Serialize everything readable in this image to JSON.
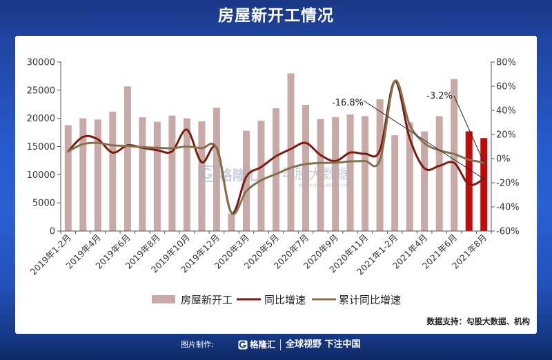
{
  "title": "房屋新开工情况",
  "chart_data": {
    "type": "bar",
    "categories": [
      "2019年1-2月",
      "",
      "2019年4月",
      "",
      "2019年6月",
      "",
      "2019年8月",
      "",
      "2019年10月",
      "",
      "2019年12月",
      "",
      "2020年3月",
      "",
      "2020年5月",
      "",
      "2020年7月",
      "",
      "2020年9月",
      "",
      "2020年11月",
      "",
      "2021年1-2月",
      "",
      "2021年4月",
      "",
      "2021年6月",
      "",
      "2021年8月"
    ],
    "series": [
      {
        "name": "房屋新开工",
        "type": "bar",
        "axis": "left",
        "color": "#c8a9a5",
        "highlight_color": "#c20a0a",
        "highlight_indices": [
          27,
          28
        ],
        "values": [
          18800,
          20000,
          19800,
          21200,
          25700,
          20200,
          19400,
          20500,
          20000,
          19500,
          21900,
          3100,
          17800,
          19600,
          21800,
          28000,
          22400,
          19900,
          20200,
          20700,
          20400,
          23400,
          17000,
          19300,
          17700,
          20400,
          27000,
          17700,
          16500
        ]
      },
      {
        "name": "同比增速",
        "type": "line",
        "axis": "right",
        "color": "#7e1a0e",
        "values": [
          6,
          18,
          16,
          5,
          11,
          9,
          7,
          6,
          24,
          -3,
          9,
          -44.9,
          -15,
          -7,
          2,
          8,
          13,
          3,
          -2,
          5,
          4,
          7,
          64.3,
          17,
          -8,
          -6,
          -3.5,
          -21.5,
          -16.8
        ]
      },
      {
        "name": "累计同比增速",
        "type": "line",
        "axis": "right",
        "color": "#85714e",
        "values": [
          6,
          12,
          13,
          11,
          10.5,
          9.5,
          9,
          8.6,
          10,
          8.6,
          8.5,
          -44.9,
          -27,
          -18,
          -12.8,
          -7.6,
          -4.5,
          -3.6,
          -3.4,
          -2.3,
          -2,
          -1.2,
          64.3,
          28.2,
          12.8,
          6.9,
          3.8,
          -0.9,
          -3.2
        ]
      }
    ],
    "y_left": {
      "min": 0,
      "max": 30000,
      "step": 5000,
      "tick_labels": [
        "0",
        "5000",
        "10000",
        "15000",
        "20000",
        "25000",
        "30000"
      ]
    },
    "y_right": {
      "min": -60,
      "max": 80,
      "step": 20,
      "tick_labels": [
        "-60%",
        "-40%",
        "-20%",
        "0%",
        "20%",
        "40%",
        "60%",
        "80%"
      ]
    },
    "annotations": [
      {
        "text": "-16.8%",
        "series_index": 1,
        "index": 28
      },
      {
        "text": "-3.2%",
        "series_index": 2,
        "index": 28
      }
    ],
    "legend": "bottom",
    "grid": false,
    "source": "数据支持：勾股大数据、机构"
  },
  "watermark": {
    "brand": "格隆汇",
    "partner": "勾股大数据",
    "url": "www.gogudata.com"
  },
  "footer": {
    "made_by": "图片制作:",
    "logo_text": "格隆汇",
    "slogan": "全球视野 下注中国"
  }
}
